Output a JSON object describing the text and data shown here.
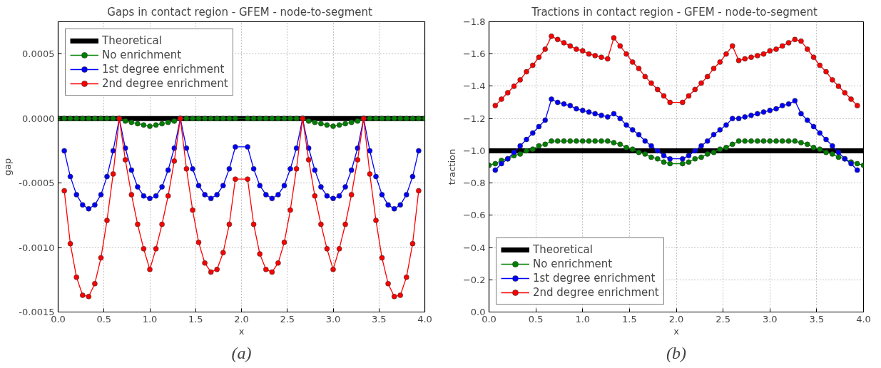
{
  "chart_data": [
    {
      "type": "line",
      "title": "Gaps in contact region - GFEM -  node-to-segment",
      "xlabel": "x",
      "ylabel": "gap",
      "annotations": [
        "(a)"
      ],
      "xlim": [
        0,
        4
      ],
      "xticks": [
        {
          "value": 0,
          "label": "0.0"
        },
        {
          "value": 0.5,
          "label": "0.5"
        },
        {
          "value": 1,
          "label": "1.0"
        },
        {
          "value": 1.5,
          "label": "1.5"
        },
        {
          "value": 2,
          "label": "2.0"
        },
        {
          "value": 2.5,
          "label": "2.5"
        },
        {
          "value": 3,
          "label": "3.0"
        },
        {
          "value": 3.5,
          "label": "3.5"
        },
        {
          "value": 4,
          "label": "4.0"
        }
      ],
      "ylim": [
        -0.0015,
        0.00075
      ],
      "yticks": [
        {
          "value": -0.0015,
          "label": "-0.0015"
        },
        {
          "value": -0.001,
          "label": "-0.0010"
        },
        {
          "value": -0.0005,
          "label": "-0.0005"
        },
        {
          "value": 0,
          "label": "0.0000"
        },
        {
          "value": 0.0005,
          "label": "0.0005"
        }
      ],
      "grid": true,
      "legend": "top left",
      "marker": "circle",
      "x": [
        0.067,
        0.133,
        0.2,
        0.267,
        0.333,
        0.4,
        0.467,
        0.533,
        0.6,
        0.667,
        0.733,
        0.8,
        0.867,
        0.933,
        1.0,
        1.067,
        1.133,
        1.2,
        1.267,
        1.333,
        1.4,
        1.467,
        1.533,
        1.6,
        1.667,
        1.733,
        1.8,
        1.867,
        1.933,
        2.067,
        2.133,
        2.2,
        2.267,
        2.333,
        2.4,
        2.467,
        2.533,
        2.6,
        2.667,
        2.733,
        2.8,
        2.867,
        2.933,
        3.0,
        3.067,
        3.133,
        3.2,
        3.267,
        3.333,
        3.4,
        3.467,
        3.533,
        3.6,
        3.667,
        3.733,
        3.8,
        3.867,
        3.933
      ],
      "series": [
        {
          "name": "Theoretical",
          "color": "#000000",
          "marker": "none",
          "x": [
            0,
            4
          ],
          "values": [
            0,
            0
          ]
        },
        {
          "name": "No enrichment",
          "color": "#008000",
          "x": [
            0,
            0.067,
            0.133,
            0.2,
            0.267,
            0.333,
            0.4,
            0.467,
            0.533,
            0.6,
            0.667,
            0.733,
            0.8,
            0.867,
            0.933,
            1.0,
            1.067,
            1.133,
            1.2,
            1.267,
            1.333,
            1.4,
            1.467,
            1.533,
            1.6,
            1.667,
            1.733,
            1.8,
            1.867,
            1.933,
            2.067,
            2.133,
            2.2,
            2.267,
            2.333,
            2.4,
            2.467,
            2.533,
            2.6,
            2.667,
            2.733,
            2.8,
            2.867,
            2.933,
            3.0,
            3.067,
            3.133,
            3.2,
            3.267,
            3.333,
            3.4,
            3.467,
            3.533,
            3.6,
            3.667,
            3.733,
            3.8,
            3.867,
            3.933,
            4
          ],
          "values": [
            0,
            0,
            0,
            0,
            0,
            0,
            0,
            0,
            0,
            0,
            0,
            -2e-05,
            -3e-05,
            -4e-05,
            -5e-05,
            -6e-05,
            -5e-05,
            -4e-05,
            -3e-05,
            -2e-05,
            0,
            0,
            0,
            0,
            0,
            0,
            0,
            0,
            0,
            0,
            0,
            0,
            0,
            0,
            0,
            0,
            0,
            0,
            0,
            0,
            -2e-05,
            -3e-05,
            -4e-05,
            -5e-05,
            -6e-05,
            -5e-05,
            -4e-05,
            -3e-05,
            -2e-05,
            0,
            0,
            0,
            0,
            0,
            0,
            0,
            0,
            0,
            0,
            0
          ]
        },
        {
          "name": "1st degree enrichment",
          "color": "#0000ff",
          "values": [
            -0.00025,
            -0.00045,
            -0.00059,
            -0.00067,
            -0.0007,
            -0.00067,
            -0.00059,
            -0.00045,
            -0.00025,
            0,
            -0.00023,
            -0.0004,
            -0.00053,
            -0.0006,
            -0.00062,
            -0.0006,
            -0.00053,
            -0.0004,
            -0.00023,
            0,
            -0.00023,
            -0.00039,
            -0.00052,
            -0.00059,
            -0.00062,
            -0.00059,
            -0.00052,
            -0.00039,
            -0.00022,
            -0.00022,
            -0.00039,
            -0.00052,
            -0.00059,
            -0.00062,
            -0.00059,
            -0.00052,
            -0.00039,
            -0.00023,
            0,
            -0.00023,
            -0.0004,
            -0.00053,
            -0.0006,
            -0.00062,
            -0.0006,
            -0.00053,
            -0.0004,
            -0.00023,
            0,
            -0.00025,
            -0.00045,
            -0.00059,
            -0.00067,
            -0.0007,
            -0.00067,
            -0.00059,
            -0.00045,
            -0.00025
          ]
        },
        {
          "name": "2nd degree enrichment",
          "color": "#ff0000",
          "values": [
            -0.00056,
            -0.00097,
            -0.00123,
            -0.00137,
            -0.00138,
            -0.00128,
            -0.00108,
            -0.00079,
            -0.00043,
            0,
            -0.00032,
            -0.00059,
            -0.00082,
            -0.00101,
            -0.00117,
            -0.00101,
            -0.00082,
            -0.0006,
            -0.00033,
            0,
            -0.00039,
            -0.00071,
            -0.00096,
            -0.00112,
            -0.00119,
            -0.00117,
            -0.00104,
            -0.00082,
            -0.00047,
            -0.00047,
            -0.00082,
            -0.00105,
            -0.00117,
            -0.00119,
            -0.00112,
            -0.00096,
            -0.00071,
            -0.00039,
            0,
            -0.00032,
            -0.0006,
            -0.00082,
            -0.00101,
            -0.00117,
            -0.00101,
            -0.00082,
            -0.00059,
            -0.00032,
            0,
            -0.00043,
            -0.00079,
            -0.00108,
            -0.00128,
            -0.00138,
            -0.00137,
            -0.00123,
            -0.00097,
            -0.00056
          ]
        }
      ]
    },
    {
      "type": "line",
      "title": "Tractions in contact region - GFEM -  node-to-segment",
      "xlabel": "x",
      "ylabel": "traction",
      "annotations": [
        "(b)"
      ],
      "xlim": [
        0,
        4
      ],
      "xticks": [
        {
          "value": 0,
          "label": "0.0"
        },
        {
          "value": 0.5,
          "label": "0.5"
        },
        {
          "value": 1,
          "label": "1.0"
        },
        {
          "value": 1.5,
          "label": "1.5"
        },
        {
          "value": 2,
          "label": "2.0"
        },
        {
          "value": 2.5,
          "label": "2.5"
        },
        {
          "value": 3,
          "label": "3.0"
        },
        {
          "value": 3.5,
          "label": "3.5"
        },
        {
          "value": 4,
          "label": "4.0"
        }
      ],
      "ylim": [
        0,
        -1.8
      ],
      "yticks": [
        {
          "value": 0,
          "label": "0.0"
        },
        {
          "value": -0.2,
          "label": "−0.2"
        },
        {
          "value": -0.4,
          "label": "−0.4"
        },
        {
          "value": -0.6,
          "label": "−0.6"
        },
        {
          "value": -0.8,
          "label": "−0.8"
        },
        {
          "value": -1.0,
          "label": "−1.0"
        },
        {
          "value": -1.2,
          "label": "−1.2"
        },
        {
          "value": -1.4,
          "label": "−1.4"
        },
        {
          "value": -1.6,
          "label": "−1.6"
        },
        {
          "value": -1.8,
          "label": "−1.8"
        }
      ],
      "grid": true,
      "legend": "bottom left",
      "marker": "circle",
      "x": [
        0.067,
        0.133,
        0.2,
        0.267,
        0.333,
        0.4,
        0.467,
        0.533,
        0.6,
        0.667,
        0.733,
        0.8,
        0.867,
        0.933,
        1.0,
        1.067,
        1.133,
        1.2,
        1.267,
        1.333,
        1.4,
        1.467,
        1.533,
        1.6,
        1.667,
        1.733,
        1.8,
        1.867,
        1.933,
        2.067,
        2.133,
        2.2,
        2.267,
        2.333,
        2.4,
        2.467,
        2.533,
        2.6,
        2.667,
        2.733,
        2.8,
        2.867,
        2.933,
        3.0,
        3.067,
        3.133,
        3.2,
        3.267,
        3.333,
        3.4,
        3.467,
        3.533,
        3.6,
        3.667,
        3.733,
        3.8,
        3.867,
        3.933
      ],
      "series": [
        {
          "name": "Theoretical",
          "color": "#000000",
          "marker": "none",
          "x": [
            0,
            4
          ],
          "values": [
            -1.0,
            -1.0
          ]
        },
        {
          "name": "No enrichment",
          "color": "#008000",
          "x": [
            0,
            0.067,
            0.133,
            0.2,
            0.267,
            0.333,
            0.4,
            0.467,
            0.533,
            0.6,
            0.667,
            0.733,
            0.8,
            0.867,
            0.933,
            1.0,
            1.067,
            1.133,
            1.2,
            1.267,
            1.333,
            1.4,
            1.467,
            1.533,
            1.6,
            1.667,
            1.733,
            1.8,
            1.867,
            1.933,
            2.067,
            2.133,
            2.2,
            2.267,
            2.333,
            2.4,
            2.467,
            2.533,
            2.6,
            2.667,
            2.733,
            2.8,
            2.867,
            2.933,
            3.0,
            3.067,
            3.133,
            3.2,
            3.267,
            3.333,
            3.4,
            3.467,
            3.533,
            3.6,
            3.667,
            3.733,
            3.8,
            3.867,
            3.933,
            4
          ],
          "values": [
            -0.91,
            -0.92,
            -0.94,
            -0.95,
            -0.97,
            -0.98,
            -1.0,
            -1.01,
            -1.03,
            -1.04,
            -1.06,
            -1.06,
            -1.06,
            -1.06,
            -1.06,
            -1.06,
            -1.06,
            -1.06,
            -1.06,
            -1.06,
            -1.05,
            -1.04,
            -1.02,
            -1.01,
            -0.99,
            -0.98,
            -0.96,
            -0.95,
            -0.93,
            -0.92,
            -0.92,
            -0.93,
            -0.95,
            -0.96,
            -0.98,
            -0.99,
            -1.01,
            -1.02,
            -1.04,
            -1.06,
            -1.06,
            -1.06,
            -1.06,
            -1.06,
            -1.06,
            -1.06,
            -1.06,
            -1.06,
            -1.06,
            -1.05,
            -1.04,
            -1.02,
            -1.01,
            -0.99,
            -0.98,
            -0.96,
            -0.95,
            -0.93,
            -0.92,
            -0.91
          ]
        },
        {
          "name": "1st degree enrichment",
          "color": "#0000ff",
          "values": [
            -0.88,
            -0.92,
            -0.95,
            -0.99,
            -1.03,
            -1.07,
            -1.11,
            -1.15,
            -1.19,
            -1.32,
            -1.3,
            -1.29,
            -1.28,
            -1.26,
            -1.25,
            -1.24,
            -1.23,
            -1.22,
            -1.21,
            -1.23,
            -1.2,
            -1.16,
            -1.13,
            -1.1,
            -1.06,
            -1.03,
            -1.0,
            -0.97,
            -0.95,
            -0.95,
            -0.97,
            -1.0,
            -1.03,
            -1.06,
            -1.1,
            -1.13,
            -1.16,
            -1.2,
            -1.2,
            -1.21,
            -1.22,
            -1.23,
            -1.24,
            -1.25,
            -1.26,
            -1.28,
            -1.29,
            -1.31,
            -1.23,
            -1.19,
            -1.15,
            -1.11,
            -1.07,
            -1.03,
            -0.99,
            -0.95,
            -0.92,
            -0.88
          ]
        },
        {
          "name": "2nd degree enrichment",
          "color": "#ff0000",
          "values": [
            -1.28,
            -1.32,
            -1.36,
            -1.4,
            -1.44,
            -1.49,
            -1.53,
            -1.58,
            -1.63,
            -1.71,
            -1.69,
            -1.67,
            -1.65,
            -1.63,
            -1.62,
            -1.6,
            -1.59,
            -1.58,
            -1.57,
            -1.7,
            -1.65,
            -1.6,
            -1.55,
            -1.51,
            -1.46,
            -1.42,
            -1.38,
            -1.34,
            -1.3,
            -1.3,
            -1.34,
            -1.38,
            -1.42,
            -1.46,
            -1.51,
            -1.55,
            -1.6,
            -1.65,
            -1.56,
            -1.57,
            -1.58,
            -1.59,
            -1.6,
            -1.62,
            -1.63,
            -1.65,
            -1.67,
            -1.69,
            -1.68,
            -1.63,
            -1.58,
            -1.53,
            -1.49,
            -1.44,
            -1.4,
            -1.36,
            -1.32,
            -1.28
          ]
        }
      ]
    }
  ]
}
